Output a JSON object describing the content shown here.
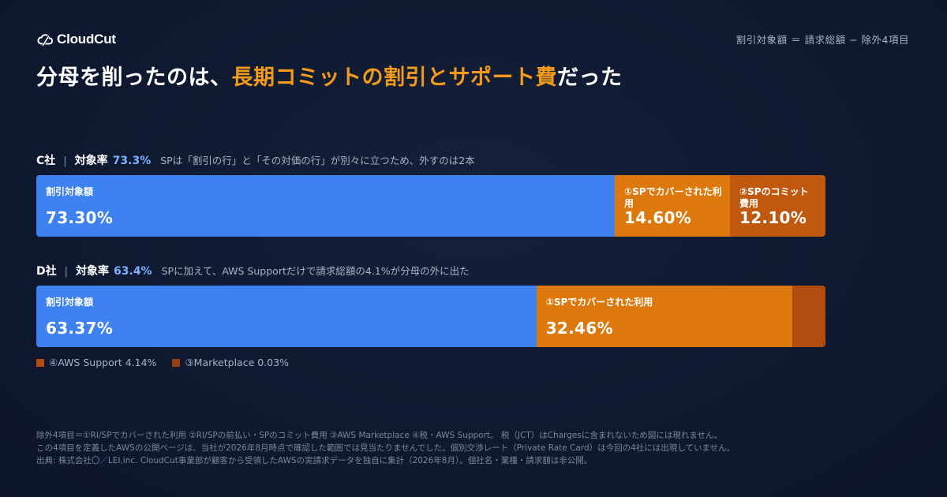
{
  "brand": {
    "name": "CloudCut"
  },
  "formula": "割引対象額 ＝ 請求総額 − 除外4項目",
  "headline": {
    "prefix": "分母を削ったのは、",
    "accent": "長期コミットの割引とサポート費",
    "suffix": "だった"
  },
  "colors": {
    "blue": "#3d82f0",
    "orange": "#dd790c",
    "dark_orange": "#c0580e",
    "darker_orange": "#b04d0e",
    "darkest_orange": "#96400f",
    "accent_text": "#f39a1a",
    "rate_text": "#7fb0ff"
  },
  "chart_data": [
    {
      "type": "bar",
      "stacked": true,
      "orientation": "horizontal",
      "company": "C社",
      "rate_label": "対象率",
      "rate_value": "73.3%",
      "note": "SPは「割引の行」と「その対価の行」が別々に立つため、外すのは2本",
      "segments": [
        {
          "name": "割引対象額",
          "value": 73.3,
          "value_label": "73.30%",
          "color": "#3d82f0"
        },
        {
          "name": "①SPでカバーされた利用",
          "value": 14.6,
          "value_label": "14.60%",
          "color": "#dd790c"
        },
        {
          "name": "②SPのコミット費用",
          "value": 12.1,
          "value_label": "12.10%",
          "color": "#c0580e"
        }
      ]
    },
    {
      "type": "bar",
      "stacked": true,
      "orientation": "horizontal",
      "company": "D社",
      "rate_label": "対象率",
      "rate_value": "63.4%",
      "note": "SPに加えて、AWS Supportだけで請求総額の4.1%が分母の外に出た",
      "segments": [
        {
          "name": "割引対象額",
          "value": 63.37,
          "value_label": "63.37%",
          "color": "#3d82f0"
        },
        {
          "name": "①SPでカバーされた利用",
          "value": 32.46,
          "value_label": "32.46%",
          "color": "#dd790c"
        },
        {
          "name": "④AWS Support",
          "value": 4.14,
          "value_label": "",
          "color": "#b04d0e"
        },
        {
          "name": "③Marketplace",
          "value": 0.03,
          "value_label": "",
          "color": "#96400f"
        }
      ],
      "legend": [
        {
          "label": "④AWS Support 4.14%",
          "color": "#b04d0e"
        },
        {
          "label": "③Marketplace 0.03%",
          "color": "#96400f"
        }
      ]
    }
  ],
  "footnotes": [
    "除外4項目＝①RI/SPでカバーされた利用 ②RI/SPの前払い・SPのコミット費用 ③AWS Marketplace ④税・AWS Support。 税（JCT）はChargesに含まれないため図には現れません。",
    "この4項目を定義したAWSの公開ページは、当社が2026年8月時点で確認した範囲では見当たりませんでした。個別交渉レート（Private Rate Card）は今回の4社には出現していません。",
    "出典: 株式会社〇／LEI,inc. CloudCut事業部が顧客から受領したAWSの実請求データを独自に集計（2026年8月）。個社名・業種・請求額は非公開。"
  ]
}
